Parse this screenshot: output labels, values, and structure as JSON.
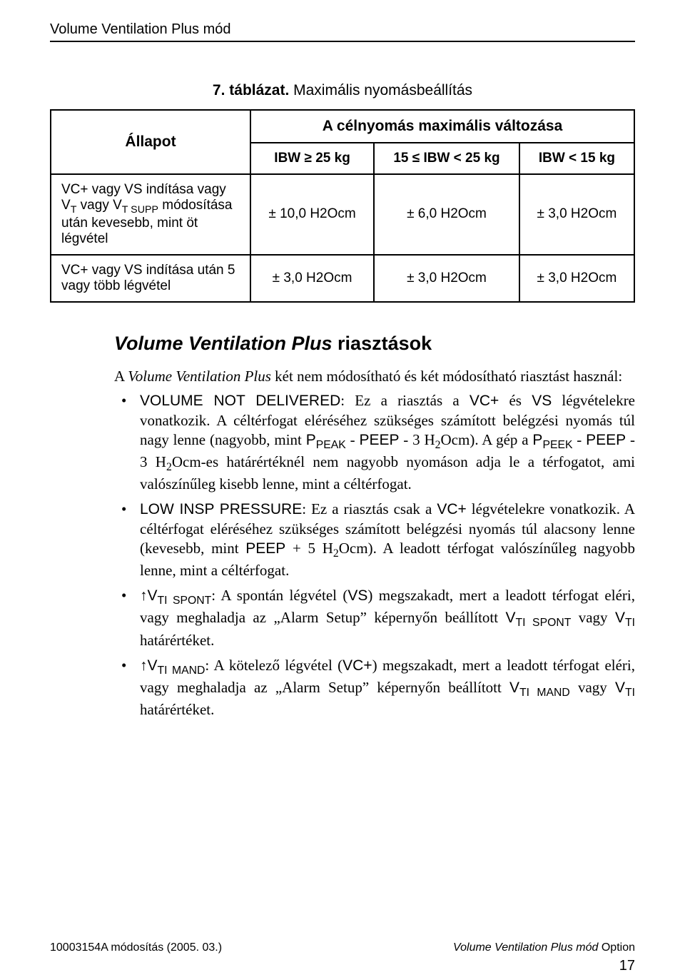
{
  "header": "Volume Ventilation Plus mód",
  "table": {
    "caption_prefix": "7. táblázat.",
    "caption_rest": " Maximális nyomásbeállítás",
    "state_head": "Állapot",
    "span_head": "A célnyomás maximális változása",
    "cols": {
      "c1": "IBW ≥ 25 kg",
      "c2": "15 ≤ IBW < 25 kg",
      "c3": "IBW < 15 kg"
    },
    "rows": [
      {
        "label_html": "VC+ vagy VS indítása vagy V<span class=\"sub\">T</span> vagy V<span class=\"sub\">T SUPP</span> módosítása után kevesebb, mint öt légvétel",
        "c1": "± 10,0 H2Ocm",
        "c2": "± 6,0 H2Ocm",
        "c3": "± 3,0 H2Ocm"
      },
      {
        "label_html": "VC+ vagy VS indítása után 5 vagy több légvétel",
        "c1": "± 3,0 H2Ocm",
        "c2": "± 3,0 H2Ocm",
        "c3": "± 3,0 H2Ocm"
      }
    ]
  },
  "section": {
    "title_italic": "Volume Ventilation Plus",
    "title_rest": " riasztások",
    "intro_pre": "A ",
    "intro_italic": "Volume Ventilation Plus",
    "intro_post": " két nem módosítható és két módosítható riasztást használ:",
    "bullets": [
      "<span class=\"sans\">VOLUME NOT DELIVERED</span>: Ez a riasztás a <span class=\"sans\">VC+</span> és <span class=\"sans\">VS</span> légvételekre vonatkozik. A céltérfogat eléréséhez szükséges számított belégzési nyomás túl nagy lenne (nagyobb, mint <span class=\"sans\">P<span class=\"sub\">PEAK</span></span> - <span class=\"sans\">PEEP</span> - 3 H<span class=\"sub\">2</span>Ocm). A gép a <span class=\"sans\">P<span class=\"sub\">PEEK</span></span> - <span class=\"sans\">PEEP</span> - 3 H<span class=\"sub\">2</span>Ocm-es határértéknél nem nagyobb nyomáson adja le a térfogatot, ami valószínűleg kisebb lenne, mint a céltérfogat.",
      "<span class=\"sans\">LOW INSP PRESSURE</span>: Ez a riasztás csak a <span class=\"sans\">VC+</span> légvételekre vonatkozik. A céltérfogat eléréséhez szükséges számított belégzési nyomás túl alacsony lenne (kevesebb, mint <span class=\"sans\">PEEP</span> + 5 H<span class=\"sub\">2</span>Ocm). A leadott térfogat valószínűleg nagyobb lenne, mint a céltérfogat.",
      "<span class=\"arrow\">↑</span><span class=\"sans\">V<span class=\"sub\">TI SPONT</span></span>: A spontán légvétel (<span class=\"sans\">VS</span>) megszakadt, mert a leadott térfogat eléri, vagy meghaladja az „Alarm Setup” képernyőn beállított <span class=\"sans\">V<span class=\"sub\">TI SPONT</span></span> vagy <span class=\"sans\">V<span class=\"sub\">TI</span></span> határértéket.",
      "<span class=\"arrow\">↑</span><span class=\"sans\">V<span class=\"sub\">TI MAND</span></span>: A kötelező légvétel (<span class=\"sans\">VC+</span>) megszakadt, mert a leadott térfogat eléri, vagy meghaladja az „Alarm Setup” képernyőn beállított <span class=\"sans\">V<span class=\"sub\">TI MAND</span></span> vagy <span class=\"sans\">V<span class=\"sub\">TI</span></span> határértéket."
    ]
  },
  "footer": {
    "left": "10003154A módosítás (2005. 03.)",
    "right_italic": "Volume Ventilation Plus mód",
    "right_rest": " Option",
    "page": "17"
  }
}
